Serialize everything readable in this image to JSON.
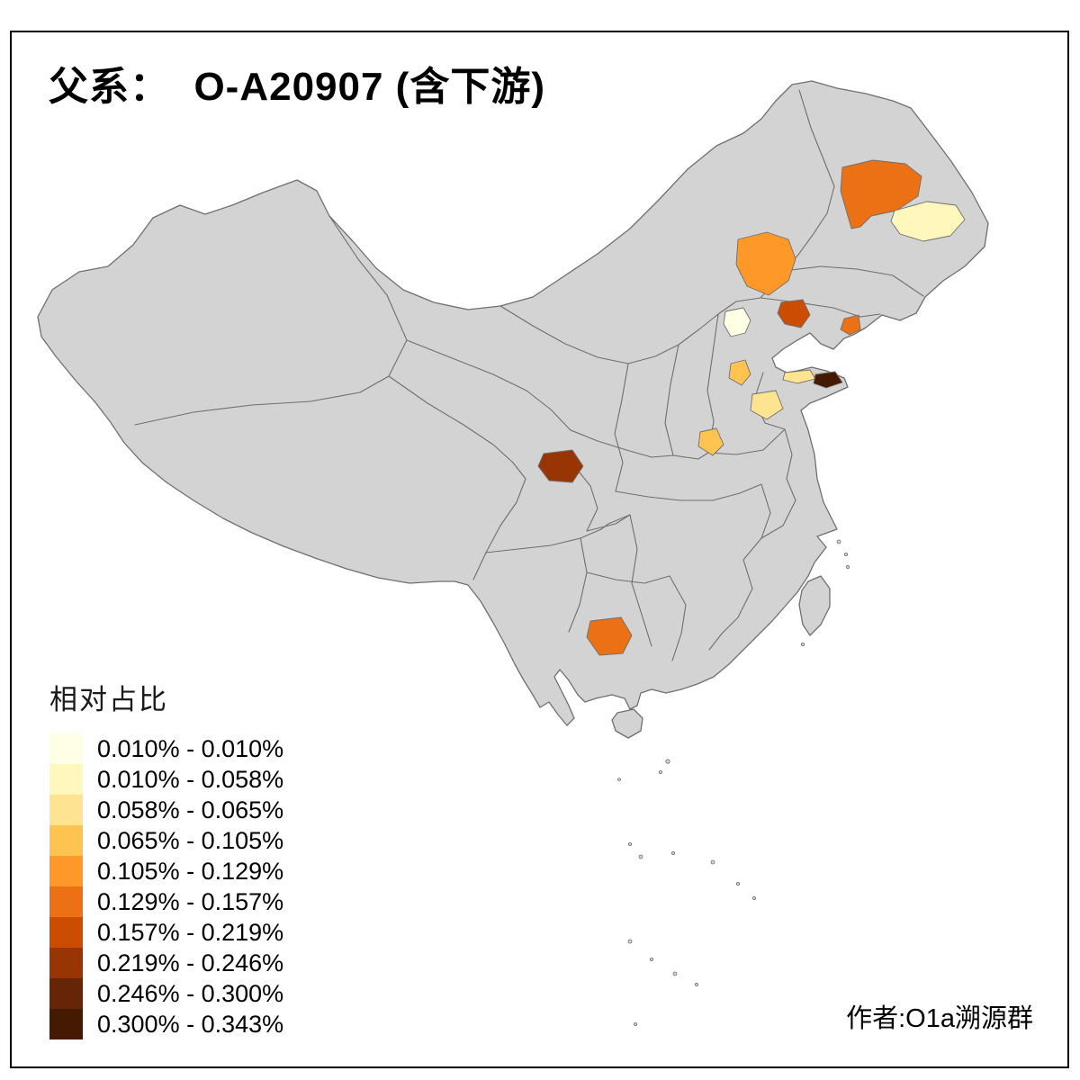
{
  "title": "父系：  O-A20907 (含下游)",
  "credit": "作者:O1a溯源群",
  "legend": {
    "title": "相对占比",
    "classes": [
      {
        "range": "0.010% - 0.010%",
        "color": "#ffffe5"
      },
      {
        "range": "0.010% - 0.058%",
        "color": "#fff7bc"
      },
      {
        "range": "0.058% - 0.065%",
        "color": "#fee391"
      },
      {
        "range": "0.065% - 0.105%",
        "color": "#fec44f"
      },
      {
        "range": "0.105% - 0.129%",
        "color": "#fe9929"
      },
      {
        "range": "0.129% - 0.157%",
        "color": "#ec7014"
      },
      {
        "range": "0.157% - 0.219%",
        "color": "#cc4c02"
      },
      {
        "range": "0.219% - 0.246%",
        "color": "#993404"
      },
      {
        "range": "0.246% - 0.300%",
        "color": "#662506"
      },
      {
        "range": "0.300% - 0.343%",
        "color": "#451a03"
      }
    ]
  },
  "map": {
    "base_fill": "#d3d3d3",
    "boundary_color": "#6f6f6f",
    "frame_color": "#000000",
    "regions": [
      {
        "id": "heilongjiang-west",
        "class": 5
      },
      {
        "id": "heilongjiang-east",
        "class": 1
      },
      {
        "id": "jilin-west",
        "class": 4
      },
      {
        "id": "beijing",
        "class": 0
      },
      {
        "id": "liaoning-central",
        "class": 6
      },
      {
        "id": "liaoning-peninsula",
        "class": 5
      },
      {
        "id": "hebei-south",
        "class": 3
      },
      {
        "id": "shandong-north",
        "class": 2
      },
      {
        "id": "shandong-peninsula",
        "class": 9
      },
      {
        "id": "shandong-central",
        "class": 2
      },
      {
        "id": "henan-central",
        "class": 3
      },
      {
        "id": "sichuan-chengdu",
        "class": 7
      },
      {
        "id": "yunnan-central",
        "class": 5
      }
    ]
  }
}
